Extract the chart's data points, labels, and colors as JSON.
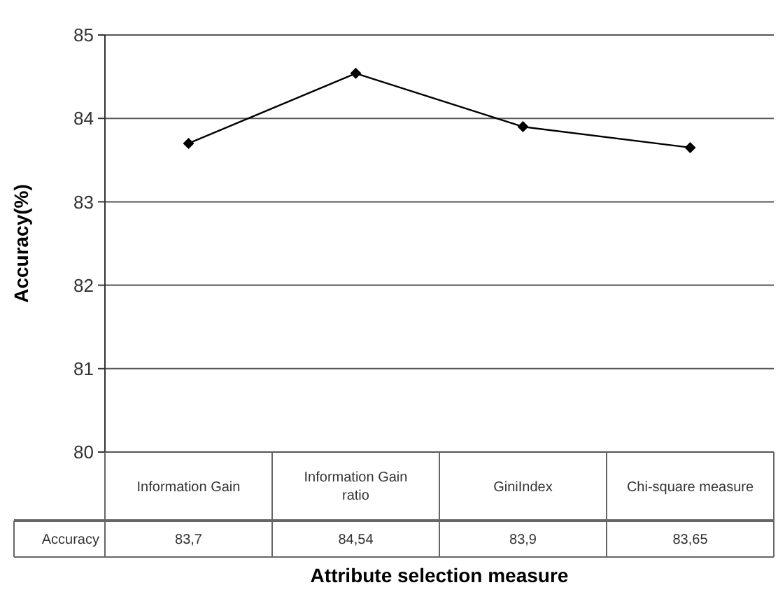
{
  "chart_data": {
    "type": "line",
    "xlabel": "Attribute selection measure",
    "ylabel": "Accuracy(%)",
    "categories": [
      "Information Gain",
      "Information Gain ratio",
      "GiniIndex",
      "Chi-square measure"
    ],
    "series": [
      {
        "name": "Accuracy",
        "color": "#000000",
        "values": [
          83.7,
          84.54,
          83.9,
          83.65
        ],
        "value_labels": [
          "83,7",
          "84,54",
          "83,9",
          "83,65"
        ]
      }
    ],
    "ylim": [
      80,
      85
    ],
    "yticks": [
      80,
      81,
      82,
      83,
      84,
      85
    ],
    "grid": "y",
    "marker": "diamond",
    "line_style": "solid"
  }
}
